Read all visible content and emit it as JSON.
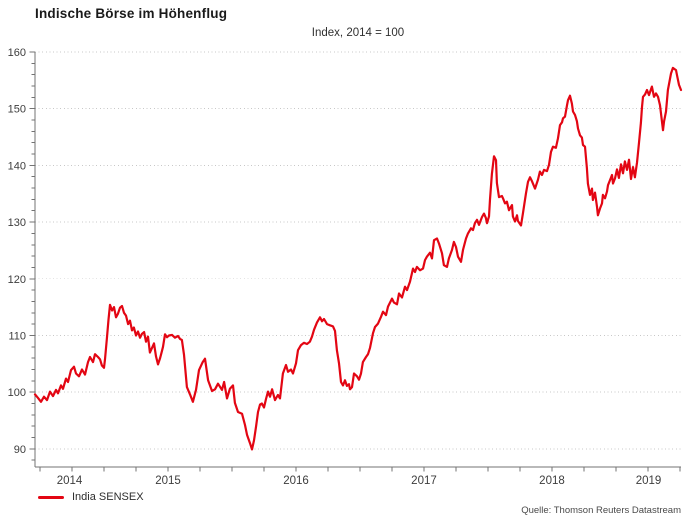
{
  "header": {
    "title": "Indische Börse im Höhenflug",
    "subtitle": "Index, 2014 = 100"
  },
  "legend": {
    "label": "India SENSEX"
  },
  "footer": {
    "source": "Quelle: Thomson Reuters Datastream"
  },
  "colors": {
    "line": "#e30613",
    "grid": "#c8c8c8",
    "axis": "#737373",
    "tick_text": "#3d3d3d",
    "title_text": "#1a1a1a",
    "source_text": "#4a4a4a"
  },
  "chart_data": {
    "type": "line",
    "title": "Indische Börse im Höhenflug",
    "subtitle": "Index, 2014 = 100",
    "xlabel": "",
    "ylabel": "",
    "grid": "horizontal-dotted",
    "legend_position": "bottom-left",
    "xlim": [
      2014.461,
      2019.508
    ],
    "ylim": [
      86.8,
      160
    ],
    "y_major_ticks": [
      90,
      100,
      110,
      120,
      130,
      140,
      150,
      160
    ],
    "y_minor_step": 2,
    "x_minor_step": 0.25,
    "x_year_labels": [
      "2014",
      "2015",
      "2016",
      "2017",
      "2018",
      "2019"
    ],
    "series": [
      {
        "name": "India SENSEX",
        "color": "#e30613",
        "points": [
          [
            2014.461,
            99.6
          ],
          [
            2014.484,
            99.0
          ],
          [
            2014.508,
            98.3
          ],
          [
            2014.531,
            99.2
          ],
          [
            2014.555,
            98.6
          ],
          [
            2014.578,
            100.1
          ],
          [
            2014.602,
            99.3
          ],
          [
            2014.625,
            100.4
          ],
          [
            2014.641,
            99.8
          ],
          [
            2014.664,
            101.2
          ],
          [
            2014.68,
            100.6
          ],
          [
            2014.703,
            102.4
          ],
          [
            2014.719,
            101.8
          ],
          [
            2014.742,
            103.9
          ],
          [
            2014.766,
            104.5
          ],
          [
            2014.781,
            103.3
          ],
          [
            2014.805,
            102.8
          ],
          [
            2014.828,
            104.0
          ],
          [
            2014.852,
            103.1
          ],
          [
            2014.875,
            105.3
          ],
          [
            2014.891,
            106.2
          ],
          [
            2014.914,
            105.3
          ],
          [
            2014.93,
            106.7
          ],
          [
            2014.953,
            106.2
          ],
          [
            2014.969,
            105.8
          ],
          [
            2014.984,
            104.7
          ],
          [
            2015.0,
            104.3
          ],
          [
            2015.008,
            105.8
          ],
          [
            2015.023,
            109.5
          ],
          [
            2015.035,
            112.8
          ],
          [
            2015.047,
            115.4
          ],
          [
            2015.063,
            114.4
          ],
          [
            2015.078,
            115.0
          ],
          [
            2015.094,
            113.2
          ],
          [
            2015.109,
            113.8
          ],
          [
            2015.125,
            114.9
          ],
          [
            2015.141,
            115.2
          ],
          [
            2015.156,
            114.0
          ],
          [
            2015.172,
            113.5
          ],
          [
            2015.188,
            112.0
          ],
          [
            2015.203,
            112.6
          ],
          [
            2015.219,
            110.9
          ],
          [
            2015.234,
            111.4
          ],
          [
            2015.25,
            110.0
          ],
          [
            2015.266,
            110.7
          ],
          [
            2015.281,
            109.6
          ],
          [
            2015.297,
            110.3
          ],
          [
            2015.313,
            110.6
          ],
          [
            2015.328,
            108.9
          ],
          [
            2015.344,
            109.8
          ],
          [
            2015.359,
            107.0
          ],
          [
            2015.375,
            107.8
          ],
          [
            2015.391,
            108.6
          ],
          [
            2015.406,
            106.3
          ],
          [
            2015.422,
            104.9
          ],
          [
            2015.438,
            106.0
          ],
          [
            2015.453,
            107.3
          ],
          [
            2015.461,
            108.0
          ],
          [
            2015.477,
            110.2
          ],
          [
            2015.492,
            109.7
          ],
          [
            2015.508,
            110.0
          ],
          [
            2015.531,
            110.1
          ],
          [
            2015.555,
            109.6
          ],
          [
            2015.578,
            109.9
          ],
          [
            2015.594,
            109.4
          ],
          [
            2015.609,
            109.2
          ],
          [
            2015.625,
            106.6
          ],
          [
            2015.648,
            100.9
          ],
          [
            2015.672,
            99.6
          ],
          [
            2015.695,
            98.3
          ],
          [
            2015.719,
            100.4
          ],
          [
            2015.742,
            103.9
          ],
          [
            2015.771,
            105.3
          ],
          [
            2015.789,
            105.9
          ],
          [
            2015.813,
            102.1
          ],
          [
            2015.844,
            100.2
          ],
          [
            2015.867,
            100.5
          ],
          [
            2015.891,
            101.5
          ],
          [
            2015.922,
            100.4
          ],
          [
            2015.938,
            101.8
          ],
          [
            2015.961,
            98.9
          ],
          [
            2015.984,
            100.6
          ],
          [
            2016.008,
            101.2
          ],
          [
            2016.023,
            98.1
          ],
          [
            2016.047,
            96.5
          ],
          [
            2016.078,
            96.2
          ],
          [
            2016.102,
            94.2
          ],
          [
            2016.117,
            92.5
          ],
          [
            2016.141,
            91.0
          ],
          [
            2016.156,
            89.9
          ],
          [
            2016.172,
            91.5
          ],
          [
            2016.188,
            94.0
          ],
          [
            2016.203,
            96.5
          ],
          [
            2016.219,
            97.8
          ],
          [
            2016.234,
            98.0
          ],
          [
            2016.25,
            97.3
          ],
          [
            2016.266,
            98.8
          ],
          [
            2016.281,
            100.1
          ],
          [
            2016.297,
            99.2
          ],
          [
            2016.313,
            100.5
          ],
          [
            2016.336,
            98.6
          ],
          [
            2016.359,
            99.5
          ],
          [
            2016.375,
            98.9
          ],
          [
            2016.398,
            103.3
          ],
          [
            2016.422,
            104.8
          ],
          [
            2016.438,
            103.6
          ],
          [
            2016.461,
            104.0
          ],
          [
            2016.477,
            103.3
          ],
          [
            2016.5,
            105.1
          ],
          [
            2016.516,
            107.4
          ],
          [
            2016.539,
            108.3
          ],
          [
            2016.563,
            108.7
          ],
          [
            2016.586,
            108.5
          ],
          [
            2016.609,
            108.9
          ],
          [
            2016.625,
            109.8
          ],
          [
            2016.641,
            111.0
          ],
          [
            2016.664,
            112.3
          ],
          [
            2016.688,
            113.2
          ],
          [
            2016.703,
            112.5
          ],
          [
            2016.719,
            112.9
          ],
          [
            2016.742,
            112.0
          ],
          [
            2016.766,
            111.8
          ],
          [
            2016.789,
            111.6
          ],
          [
            2016.805,
            110.8
          ],
          [
            2016.82,
            107.4
          ],
          [
            2016.836,
            105.1
          ],
          [
            2016.852,
            101.8
          ],
          [
            2016.867,
            101.2
          ],
          [
            2016.883,
            102.1
          ],
          [
            2016.898,
            101.1
          ],
          [
            2016.914,
            101.4
          ],
          [
            2016.922,
            100.5
          ],
          [
            2016.938,
            100.9
          ],
          [
            2016.953,
            103.3
          ],
          [
            2016.977,
            102.8
          ],
          [
            2016.992,
            102.2
          ],
          [
            2017.008,
            103.3
          ],
          [
            2017.023,
            105.3
          ],
          [
            2017.047,
            106.2
          ],
          [
            2017.063,
            106.7
          ],
          [
            2017.078,
            107.8
          ],
          [
            2017.102,
            110.4
          ],
          [
            2017.117,
            111.5
          ],
          [
            2017.141,
            112.1
          ],
          [
            2017.164,
            113.3
          ],
          [
            2017.18,
            114.2
          ],
          [
            2017.203,
            113.6
          ],
          [
            2017.219,
            115.1
          ],
          [
            2017.25,
            116.5
          ],
          [
            2017.266,
            115.8
          ],
          [
            2017.289,
            115.5
          ],
          [
            2017.305,
            117.4
          ],
          [
            2017.328,
            116.7
          ],
          [
            2017.352,
            118.6
          ],
          [
            2017.367,
            118.0
          ],
          [
            2017.391,
            119.5
          ],
          [
            2017.414,
            121.8
          ],
          [
            2017.43,
            121.2
          ],
          [
            2017.445,
            122.1
          ],
          [
            2017.469,
            121.5
          ],
          [
            2017.492,
            121.8
          ],
          [
            2017.508,
            123.3
          ],
          [
            2017.523,
            123.9
          ],
          [
            2017.547,
            124.6
          ],
          [
            2017.563,
            123.6
          ],
          [
            2017.578,
            126.8
          ],
          [
            2017.602,
            127.1
          ],
          [
            2017.617,
            126.2
          ],
          [
            2017.641,
            124.5
          ],
          [
            2017.656,
            122.4
          ],
          [
            2017.68,
            122.1
          ],
          [
            2017.695,
            123.6
          ],
          [
            2017.719,
            125.1
          ],
          [
            2017.734,
            126.5
          ],
          [
            2017.75,
            125.6
          ],
          [
            2017.766,
            123.9
          ],
          [
            2017.789,
            123.0
          ],
          [
            2017.805,
            125.1
          ],
          [
            2017.828,
            127.1
          ],
          [
            2017.844,
            128.0
          ],
          [
            2017.867,
            128.9
          ],
          [
            2017.883,
            128.6
          ],
          [
            2017.898,
            129.8
          ],
          [
            2017.914,
            130.4
          ],
          [
            2017.93,
            129.5
          ],
          [
            2017.953,
            130.9
          ],
          [
            2017.969,
            131.5
          ],
          [
            2017.984,
            130.7
          ],
          [
            2017.992,
            129.8
          ],
          [
            2018.008,
            131.0
          ],
          [
            2018.016,
            134.0
          ],
          [
            2018.031,
            138.5
          ],
          [
            2018.047,
            141.6
          ],
          [
            2018.063,
            140.9
          ],
          [
            2018.07,
            136.9
          ],
          [
            2018.086,
            134.4
          ],
          [
            2018.109,
            134.6
          ],
          [
            2018.117,
            134.2
          ],
          [
            2018.133,
            133.3
          ],
          [
            2018.148,
            133.6
          ],
          [
            2018.164,
            132.1
          ],
          [
            2018.188,
            133.0
          ],
          [
            2018.195,
            131.0
          ],
          [
            2018.211,
            130.1
          ],
          [
            2018.227,
            131.2
          ],
          [
            2018.234,
            130.2
          ],
          [
            2018.258,
            129.4
          ],
          [
            2018.273,
            131.5
          ],
          [
            2018.297,
            135.1
          ],
          [
            2018.313,
            137.1
          ],
          [
            2018.328,
            137.9
          ],
          [
            2018.344,
            137.2
          ],
          [
            2018.367,
            135.9
          ],
          [
            2018.391,
            137.5
          ],
          [
            2018.406,
            138.9
          ],
          [
            2018.422,
            138.3
          ],
          [
            2018.438,
            139.2
          ],
          [
            2018.461,
            139.0
          ],
          [
            2018.477,
            140.1
          ],
          [
            2018.492,
            142.4
          ],
          [
            2018.508,
            143.3
          ],
          [
            2018.531,
            143.1
          ],
          [
            2018.547,
            144.8
          ],
          [
            2018.563,
            147.1
          ],
          [
            2018.578,
            147.6
          ],
          [
            2018.586,
            148.3
          ],
          [
            2018.602,
            148.6
          ],
          [
            2018.617,
            150.6
          ],
          [
            2018.625,
            151.5
          ],
          [
            2018.641,
            152.3
          ],
          [
            2018.656,
            150.9
          ],
          [
            2018.664,
            149.5
          ],
          [
            2018.68,
            148.9
          ],
          [
            2018.695,
            147.8
          ],
          [
            2018.703,
            146.5
          ],
          [
            2018.719,
            145.3
          ],
          [
            2018.734,
            144.9
          ],
          [
            2018.742,
            143.6
          ],
          [
            2018.758,
            143.3
          ],
          [
            2018.773,
            139.5
          ],
          [
            2018.781,
            136.8
          ],
          [
            2018.797,
            134.8
          ],
          [
            2018.813,
            135.9
          ],
          [
            2018.82,
            133.9
          ],
          [
            2018.836,
            135.2
          ],
          [
            2018.852,
            132.7
          ],
          [
            2018.859,
            131.2
          ],
          [
            2018.875,
            132.4
          ],
          [
            2018.891,
            133.3
          ],
          [
            2018.898,
            134.8
          ],
          [
            2018.914,
            134.2
          ],
          [
            2018.93,
            135.4
          ],
          [
            2018.938,
            136.5
          ],
          [
            2018.953,
            137.4
          ],
          [
            2018.969,
            138.3
          ],
          [
            2018.977,
            136.8
          ],
          [
            2018.992,
            137.7
          ],
          [
            2019.008,
            139.3
          ],
          [
            2019.023,
            137.8
          ],
          [
            2019.039,
            140.2
          ],
          [
            2019.055,
            138.6
          ],
          [
            2019.07,
            140.7
          ],
          [
            2019.086,
            139.2
          ],
          [
            2019.102,
            141.0
          ],
          [
            2019.117,
            137.6
          ],
          [
            2019.133,
            139.7
          ],
          [
            2019.148,
            137.9
          ],
          [
            2019.164,
            140.5
          ],
          [
            2019.18,
            144.0
          ],
          [
            2019.195,
            147.5
          ],
          [
            2019.203,
            150.3
          ],
          [
            2019.211,
            152.1
          ],
          [
            2019.227,
            152.5
          ],
          [
            2019.242,
            153.3
          ],
          [
            2019.258,
            152.4
          ],
          [
            2019.281,
            153.9
          ],
          [
            2019.297,
            152.1
          ],
          [
            2019.313,
            152.7
          ],
          [
            2019.328,
            152.1
          ],
          [
            2019.344,
            150.6
          ],
          [
            2019.367,
            146.2
          ],
          [
            2019.375,
            147.7
          ],
          [
            2019.391,
            149.5
          ],
          [
            2019.406,
            153.3
          ],
          [
            2019.43,
            156.2
          ],
          [
            2019.445,
            157.2
          ],
          [
            2019.469,
            156.8
          ],
          [
            2019.477,
            155.9
          ],
          [
            2019.492,
            154.2
          ],
          [
            2019.508,
            153.3
          ]
        ]
      }
    ]
  }
}
